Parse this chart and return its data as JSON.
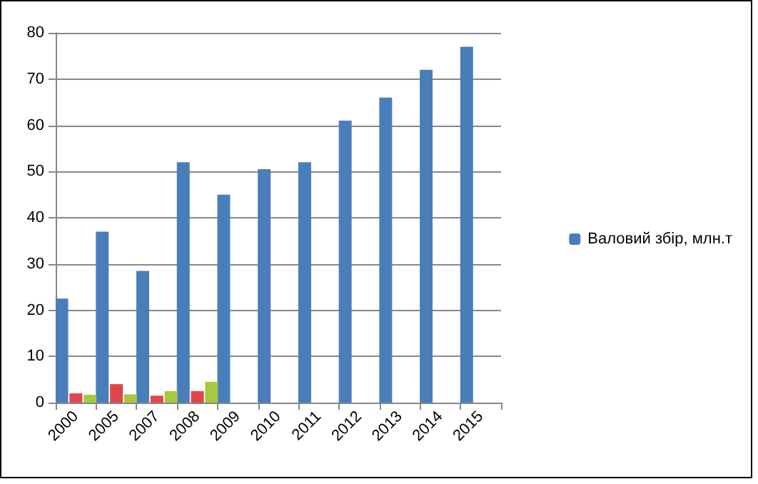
{
  "chart_data": {
    "type": "bar",
    "categories": [
      "2000",
      "2005",
      "2007",
      "2008",
      "2009",
      "2010",
      "2011",
      "2012",
      "2013",
      "2014",
      "2015"
    ],
    "series": [
      {
        "name": "Валовий збір, млн.т",
        "color": "#4a7ebb",
        "values": [
          22.5,
          37,
          28.5,
          52,
          45,
          50.5,
          52,
          61,
          66,
          72,
          77
        ]
      },
      {
        "color": "#e0474c",
        "values": [
          2,
          4,
          1.5,
          2.5,
          null,
          null,
          null,
          null,
          null,
          null,
          null
        ]
      },
      {
        "color": "#a6c940",
        "values": [
          1.7,
          1.8,
          2.5,
          4.5,
          null,
          null,
          null,
          null,
          null,
          null,
          null
        ]
      }
    ],
    "ylim": [
      0,
      80
    ],
    "yticks": [
      0,
      10,
      20,
      30,
      40,
      50,
      60,
      70,
      80
    ],
    "grid": "y",
    "legend": "right"
  }
}
